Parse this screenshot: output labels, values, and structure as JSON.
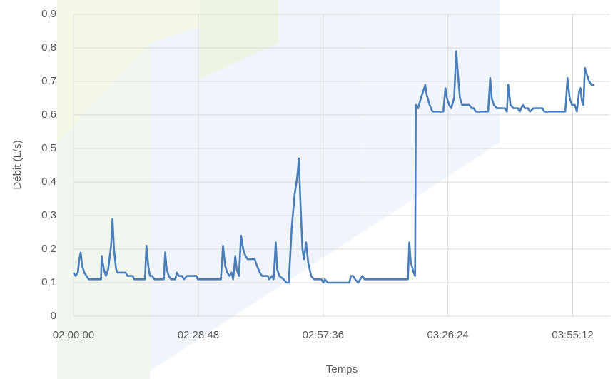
{
  "chart_data": {
    "type": "line",
    "x_label": "Temps",
    "y_label": "Débit (L/s)",
    "xlim": [
      7200,
      14630
    ],
    "ylim": [
      0,
      0.9
    ],
    "xticks": [
      {
        "value": 7200,
        "label": "02:00:00"
      },
      {
        "value": 8928,
        "label": "02:28:48"
      },
      {
        "value": 10656,
        "label": "02:57:36"
      },
      {
        "value": 12384,
        "label": "03:26:24"
      },
      {
        "value": 14112,
        "label": "03:55:12"
      }
    ],
    "yticks": [
      0,
      {
        "value": 0.1,
        "label": "0,1"
      },
      {
        "value": 0.2,
        "label": "0,2"
      },
      {
        "value": 0.3,
        "label": "0,3"
      },
      {
        "value": 0.4,
        "label": "0,4"
      },
      {
        "value": 0.5,
        "label": "0,5"
      },
      {
        "value": 0.6,
        "label": "0,6"
      },
      {
        "value": 0.7,
        "label": "0,7"
      },
      {
        "value": 0.8,
        "label": "0,8"
      },
      {
        "value": 0.9,
        "label": "0,9"
      }
    ],
    "grid": true,
    "series": [
      {
        "color": "#4a7ebb",
        "x": [
          7200,
          7230,
          7260,
          7280,
          7300,
          7320,
          7350,
          7380,
          7410,
          7580,
          7590,
          7620,
          7650,
          7680,
          7720,
          7740,
          7760,
          7790,
          7810,
          7920,
          7950,
          8020,
          8040,
          8190,
          8210,
          8240,
          8260,
          8290,
          8320,
          8450,
          8470,
          8490,
          8520,
          8550,
          8610,
          8630,
          8660,
          8700,
          8730,
          8770,
          8900,
          8920,
          9240,
          9270,
          9300,
          9330,
          9360,
          9390,
          9410,
          9440,
          9460,
          9490,
          9520,
          9550,
          9580,
          9610,
          9710,
          9740,
          9780,
          9810,
          9890,
          9910,
          9950,
          9970,
          10000,
          10020,
          10050,
          10110,
          10150,
          10180,
          10220,
          10260,
          10300,
          10320,
          10340,
          10370,
          10390,
          10420,
          10450,
          10490,
          10530,
          10630,
          10660,
          10680,
          10720,
          10770,
          11020,
          11040,
          11070,
          11100,
          11140,
          11170,
          11200,
          11230,
          11830,
          11850,
          11870,
          11910,
          11930,
          11940,
          11970,
          12010,
          12040,
          12070,
          12090,
          12130,
          12170,
          12320,
          12350,
          12370,
          12400,
          12430,
          12470,
          12500,
          12520,
          12550,
          12580,
          12680,
          12710,
          12740,
          12770,
          12940,
          12970,
          12990,
          13020,
          13060,
          13170,
          13200,
          13220,
          13250,
          13290,
          13350,
          13380,
          13420,
          13450,
          13490,
          13520,
          13570,
          13690,
          13720,
          14010,
          14040,
          14070,
          14100,
          14140,
          14170,
          14200,
          14220,
          14240,
          14260,
          14280,
          14310,
          14340,
          14370,
          14390,
          14410
        ],
        "values": [
          0.13,
          0.12,
          0.13,
          0.17,
          0.19,
          0.15,
          0.13,
          0.12,
          0.11,
          0.11,
          0.18,
          0.14,
          0.12,
          0.14,
          0.21,
          0.29,
          0.2,
          0.14,
          0.13,
          0.13,
          0.12,
          0.12,
          0.11,
          0.11,
          0.21,
          0.14,
          0.12,
          0.12,
          0.11,
          0.11,
          0.19,
          0.14,
          0.12,
          0.11,
          0.11,
          0.13,
          0.12,
          0.12,
          0.11,
          0.12,
          0.12,
          0.11,
          0.11,
          0.21,
          0.15,
          0.13,
          0.12,
          0.13,
          0.11,
          0.18,
          0.14,
          0.12,
          0.24,
          0.2,
          0.18,
          0.17,
          0.17,
          0.15,
          0.13,
          0.12,
          0.12,
          0.11,
          0.12,
          0.11,
          0.22,
          0.14,
          0.12,
          0.11,
          0.1,
          0.1,
          0.26,
          0.36,
          0.42,
          0.47,
          0.35,
          0.2,
          0.17,
          0.22,
          0.16,
          0.12,
          0.11,
          0.11,
          0.1,
          0.11,
          0.1,
          0.1,
          0.1,
          0.12,
          0.12,
          0.11,
          0.1,
          0.11,
          0.12,
          0.11,
          0.11,
          0.22,
          0.16,
          0.13,
          0.12,
          0.63,
          0.62,
          0.65,
          0.67,
          0.69,
          0.66,
          0.63,
          0.61,
          0.61,
          0.68,
          0.65,
          0.63,
          0.62,
          0.65,
          0.79,
          0.73,
          0.65,
          0.63,
          0.63,
          0.62,
          0.62,
          0.61,
          0.61,
          0.71,
          0.65,
          0.63,
          0.62,
          0.62,
          0.61,
          0.69,
          0.63,
          0.62,
          0.62,
          0.61,
          0.63,
          0.62,
          0.62,
          0.61,
          0.62,
          0.62,
          0.61,
          0.61,
          0.71,
          0.65,
          0.63,
          0.63,
          0.61,
          0.67,
          0.68,
          0.64,
          0.63,
          0.74,
          0.72,
          0.7,
          0.69,
          0.69,
          0.69
        ]
      }
    ]
  }
}
